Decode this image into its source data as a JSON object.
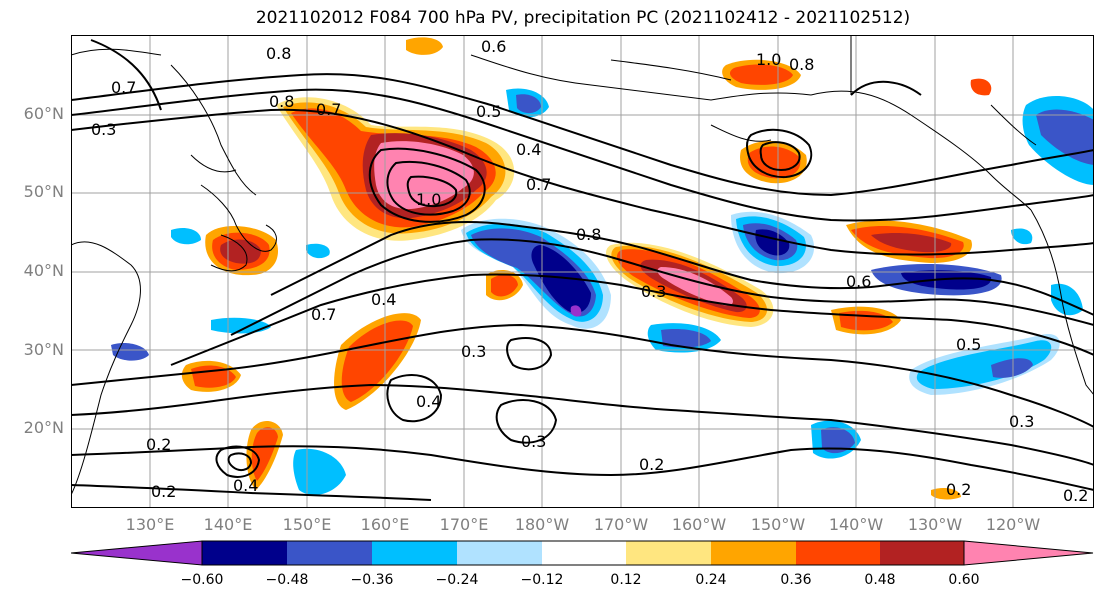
{
  "title": "2021102012 F084 700 hPa PV, precipitation PC (2021102412 - 2021102512)",
  "lat_labels": [
    "60°N",
    "50°N",
    "40°N",
    "30°N",
    "20°N"
  ],
  "lon_labels": [
    "130°E",
    "140°E",
    "150°E",
    "160°E",
    "170°E",
    "180°W",
    "170°W",
    "160°W",
    "150°W",
    "140°W",
    "130°W",
    "120°W"
  ],
  "contour_labels": [
    "0.8",
    "0.6",
    "0.7",
    "1.0",
    "0.8",
    "0.7",
    "0.8",
    "0.5",
    "0.4",
    "0.7",
    "1.0",
    "0.8",
    "0.3",
    "0.4",
    "0.6",
    "0.5",
    "0.7",
    "0.3",
    "0.2",
    "0.4",
    "0.3",
    "0.2",
    "0.2",
    "0.3",
    "0.2",
    "0.2",
    "0.4",
    "0.3"
  ],
  "colorbar": {
    "ticks": [
      "−0.60",
      "−0.48",
      "−0.36",
      "−0.24",
      "−0.12",
      "0.12",
      "0.24",
      "0.36",
      "0.48",
      "0.60"
    ],
    "colors": [
      "#9932cc",
      "#00008b",
      "#3a55c8",
      "#00bfff",
      "#b0e2ff",
      "#ffffff",
      "#ffe680",
      "#ffa500",
      "#ff4500",
      "#b22222",
      "#ff83b0"
    ]
  },
  "legend": {
    "positive_color": "#ff4500",
    "negative_color": "#00bfff"
  }
}
